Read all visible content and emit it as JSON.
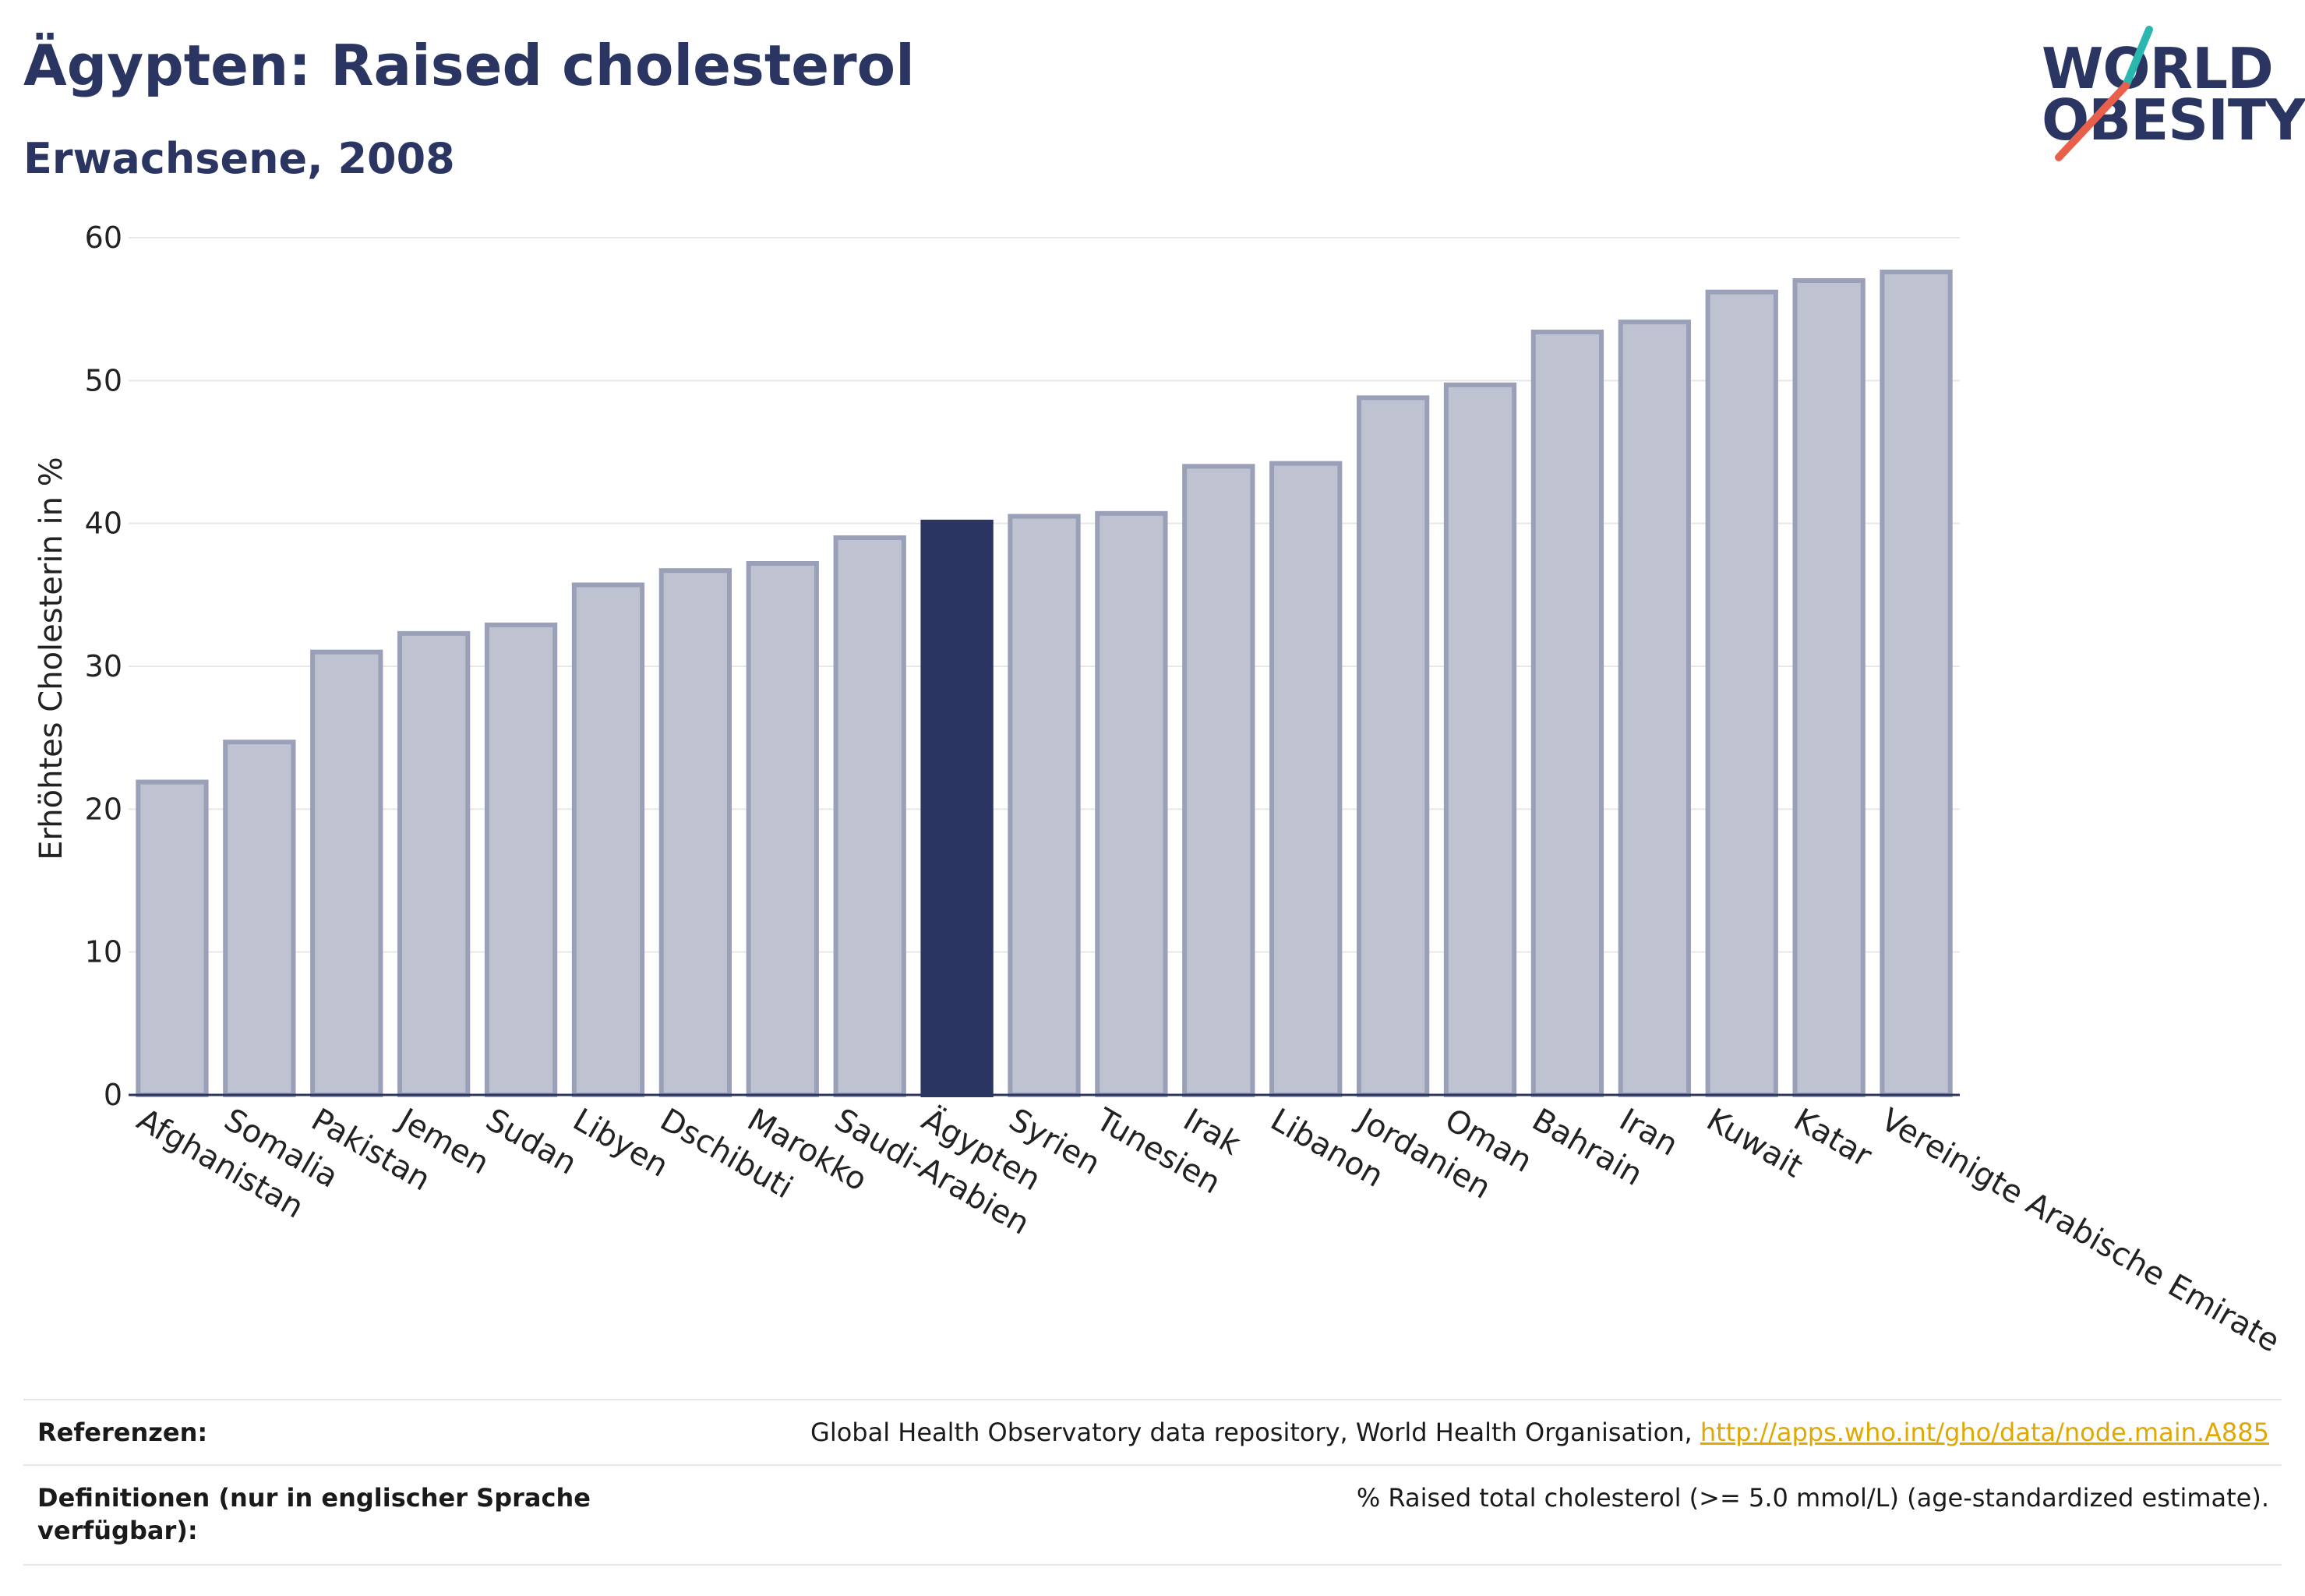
{
  "header": {
    "title": "Ägypten: Raised cholesterol",
    "subtitle": "Erwachsene, 2008"
  },
  "logo": {
    "line1": "WORLD",
    "line2": "OBESITY",
    "colors": {
      "text": "#2b3561",
      "slash_top": "#2ab7b0",
      "slash_bottom": "#e8604c"
    }
  },
  "chart_data": {
    "type": "bar",
    "title": "Ägypten: Raised cholesterol",
    "subtitle": "Erwachsene, 2008",
    "xlabel": "",
    "ylabel": "Erhöhtes Cholesterin in %",
    "ylim": [
      0,
      60
    ],
    "yticks": [
      0,
      10,
      20,
      30,
      40,
      50,
      60
    ],
    "grid": true,
    "highlight": "Ägypten",
    "colors": {
      "bar": "#bfc2d0",
      "bar_border": "#9aa0b8",
      "highlight": "#2b3561",
      "grid": "#e8e8e8",
      "axis": "#2b3561"
    },
    "categories": [
      "Afghanistan",
      "Somalia",
      "Pakistan",
      "Jemen",
      "Sudan",
      "Libyen",
      "Dschibuti",
      "Marokko",
      "Saudi-Arabien",
      "Ägypten",
      "Syrien",
      "Tunesien",
      "Irak",
      "Libanon",
      "Jordanien",
      "Oman",
      "Bahrain",
      "Iran",
      "Kuwait",
      "Katar",
      "Vereinigte Arabische Emirate"
    ],
    "values": [
      21.9,
      24.7,
      31.0,
      32.3,
      32.9,
      35.7,
      36.7,
      37.2,
      39.0,
      40.1,
      40.5,
      40.7,
      44.0,
      44.2,
      48.8,
      49.7,
      53.4,
      54.1,
      56.2,
      57.0,
      57.6
    ]
  },
  "footer": {
    "references_label": "Referenzen:",
    "references_text": "Global Health Observatory data repository, World Health Organisation, ",
    "references_link": "http://apps.who.int/gho/data/node.main.A885",
    "definitions_label": "Definitionen (nur in englischer Sprache verfügbar):",
    "definitions_text": "% Raised total cholesterol (>= 5.0 mmol/L) (age-standardized estimate)."
  }
}
